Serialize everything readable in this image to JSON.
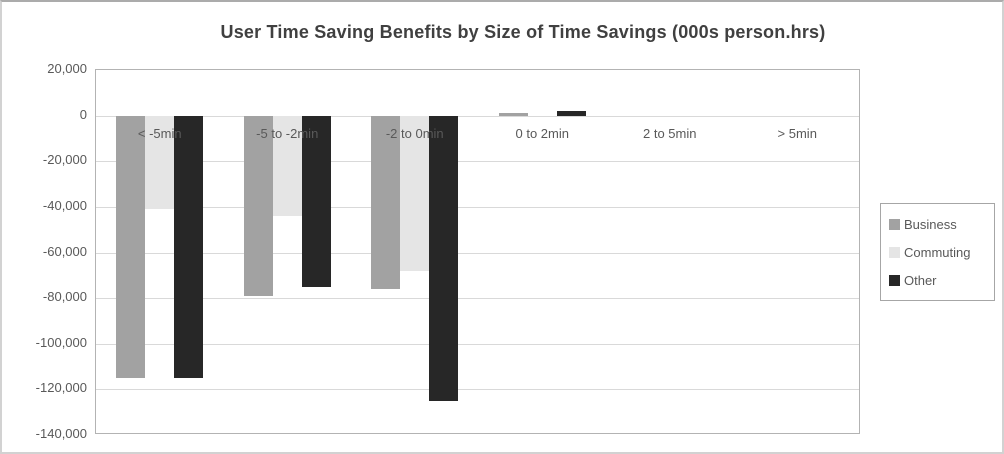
{
  "chart_data": {
    "type": "bar",
    "title": "User Time Saving Benefits by Size of Time Savings (000s person.hrs)",
    "categories": [
      "< -5min",
      "-5 to -2min",
      "-2 to 0min",
      "0 to 2min",
      "2 to 5min",
      "> 5min"
    ],
    "series": [
      {
        "name": "Business",
        "color": "#a2a2a2",
        "values": [
          -115000,
          -79000,
          -76000,
          1000,
          0,
          0
        ]
      },
      {
        "name": "Commuting",
        "color": "#e5e5e5",
        "values": [
          -41000,
          -44000,
          -68000,
          0,
          0,
          0
        ]
      },
      {
        "name": "Other",
        "color": "#272727",
        "values": [
          -115000,
          -75000,
          -125000,
          2000,
          0,
          0
        ]
      }
    ],
    "xlabel": "",
    "ylabel": "",
    "ylim": [
      -140000,
      20000
    ],
    "ytick_step": 20000,
    "ytick_labels": [
      "20,000",
      "0",
      "-20,000",
      "-40,000",
      "-60,000",
      "-80,000",
      "-100,000",
      "-120,000",
      "-140,000"
    ],
    "grid": true,
    "legend_position": "right"
  },
  "colors": {
    "grid": "#d9d9d9",
    "plot_border": "#b3b3b3",
    "axis_text": "#595959",
    "title_text": "#404040",
    "background": "#ffffff"
  }
}
